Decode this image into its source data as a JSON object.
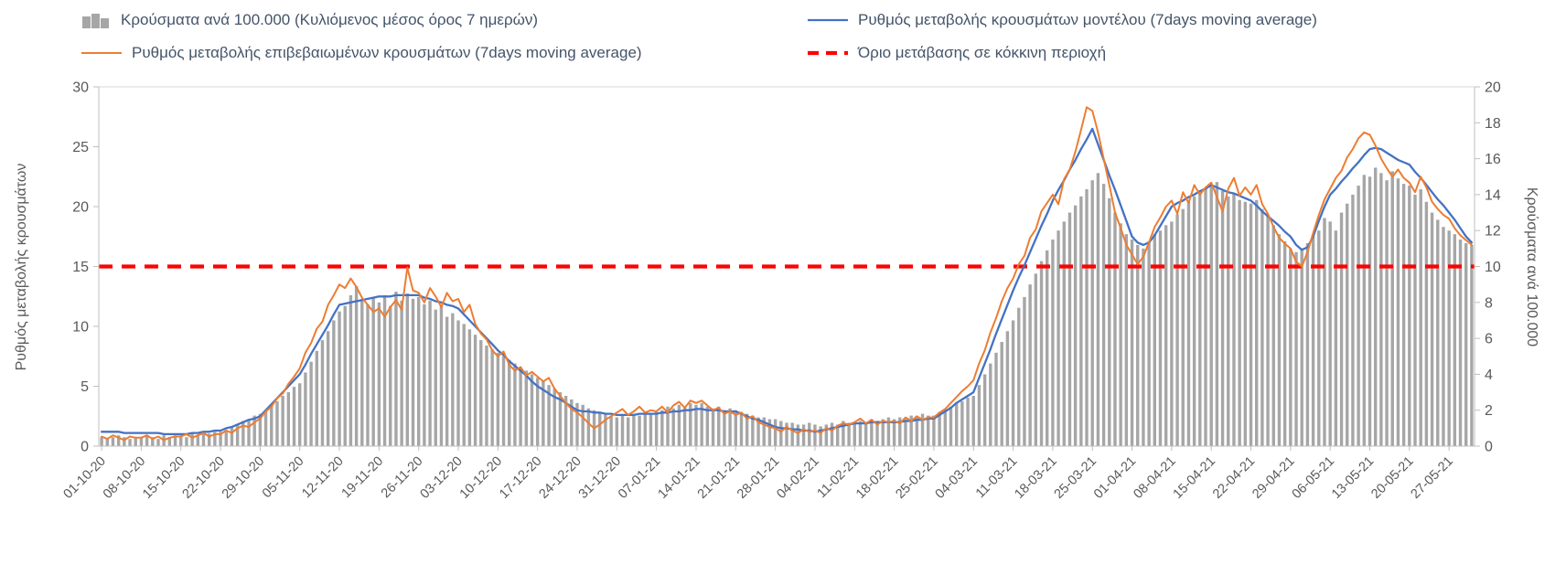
{
  "chart_data": {
    "type": "combo",
    "x_tick_labels": [
      "01-10-20",
      "08-10-20",
      "15-10-20",
      "22-10-20",
      "29-10-20",
      "05-11-20",
      "12-11-20",
      "19-11-20",
      "26-11-20",
      "03-12-20",
      "10-12-20",
      "17-12-20",
      "24-12-20",
      "31-12-20",
      "07-01-21",
      "14-01-21",
      "21-01-21",
      "28-01-21",
      "04-02-21",
      "11-02-21",
      "18-02-21",
      "25-02-21",
      "04-03-21",
      "11-03-21",
      "18-03-21",
      "25-03-21",
      "01-04-21",
      "08-04-21",
      "15-04-21",
      "22-04-21",
      "29-04-21",
      "06-05-21",
      "13-05-21",
      "20-05-21",
      "27-05-21"
    ],
    "days_per_tick": 7,
    "left_axis": {
      "title": "Ρυθμός μεταβολής κρουσμάτων",
      "min": 0,
      "max": 30,
      "ticks": [
        0,
        5,
        10,
        15,
        20,
        25,
        30
      ]
    },
    "right_axis": {
      "title": "Κρούσματα ανά 100.000",
      "min": 0,
      "max": 20,
      "ticks": [
        0,
        2,
        4,
        6,
        8,
        10,
        12,
        14,
        16,
        18,
        20
      ]
    },
    "threshold": {
      "label": "Όριο μετάβασης σε κόκκινη περιοχή",
      "axis": "left",
      "value": 15,
      "color": "#ff0000"
    },
    "bars": {
      "name": "Κρούσματα ανά 100.000 (Κυλιόμενος μέσος όρος 7 ημερών)",
      "axis": "right",
      "color": "#a6a6a6",
      "values": [
        0.5,
        0.4,
        0.5,
        0.6,
        0.5,
        0.4,
        0.5,
        0.5,
        0.6,
        0.5,
        0.4,
        0.6,
        0.5,
        0.6,
        0.6,
        0.5,
        0.7,
        0.6,
        0.8,
        0.7,
        0.8,
        0.8,
        0.9,
        1.1,
        1.2,
        1.4,
        1.5,
        1.7,
        1.8,
        2.0,
        2.3,
        2.5,
        2.8,
        3.0,
        3.3,
        3.5,
        4.1,
        4.7,
        5.3,
        5.9,
        6.4,
        7.0,
        7.5,
        7.8,
        8.4,
        8.9,
        8.2,
        7.9,
        8.3,
        8.0,
        8.4,
        7.8,
        8.6,
        8.1,
        8.5,
        8.2,
        8.3,
        7.9,
        8.1,
        7.6,
        7.8,
        7.2,
        7.4,
        7.0,
        6.8,
        6.5,
        6.2,
        5.9,
        5.6,
        5.4,
        5.2,
        5.0,
        4.8,
        4.6,
        4.4,
        4.2,
        4.0,
        3.8,
        3.6,
        3.4,
        3.2,
        3.0,
        2.8,
        2.6,
        2.4,
        2.3,
        2.1,
        2.0,
        1.9,
        1.8,
        1.7,
        1.6,
        1.7,
        1.6,
        1.8,
        1.7,
        1.9,
        1.8,
        1.9,
        2.0,
        2.2,
        2.1,
        2.3,
        2.2,
        2.4,
        2.3,
        2.4,
        2.2,
        2.1,
        2.2,
        2.0,
        2.1,
        2.0,
        1.9,
        1.8,
        1.7,
        1.6,
        1.6,
        1.5,
        1.5,
        1.4,
        1.3,
        1.3,
        1.2,
        1.2,
        1.3,
        1.2,
        1.1,
        1.2,
        1.3,
        1.2,
        1.4,
        1.3,
        1.3,
        1.4,
        1.3,
        1.5,
        1.4,
        1.5,
        1.6,
        1.5,
        1.6,
        1.5,
        1.7,
        1.6,
        1.8,
        1.7,
        1.7,
        1.9,
        2.0,
        2.2,
        2.4,
        2.5,
        2.7,
        2.8,
        3.4,
        4.0,
        4.6,
        5.2,
        5.8,
        6.4,
        7.0,
        7.7,
        8.3,
        9.0,
        9.6,
        10.3,
        10.9,
        11.5,
        12.0,
        12.5,
        13.0,
        13.4,
        13.9,
        14.3,
        14.8,
        15.2,
        14.6,
        13.8,
        13.0,
        12.4,
        11.8,
        11.5,
        11.2,
        11.0,
        11.4,
        11.8,
        12.0,
        12.3,
        12.5,
        12.9,
        13.2,
        13.6,
        13.9,
        14.2,
        14.4,
        14.5,
        14.7,
        14.2,
        13.9,
        14.1,
        13.7,
        13.6,
        13.5,
        13.7,
        13.2,
        12.8,
        12.3,
        11.8,
        11.4,
        11.0,
        10.8,
        11.0,
        11.3,
        11.7,
        12.0,
        12.7,
        12.5,
        12.0,
        13.0,
        13.5,
        14.0,
        14.5,
        15.1,
        15.0,
        15.5,
        15.2,
        14.8,
        15.3,
        14.9,
        14.6,
        14.5,
        14.0,
        14.3,
        13.6,
        13.0,
        12.6,
        12.2,
        12.0,
        11.8,
        11.5,
        11.3,
        11.2
      ]
    },
    "model_line": {
      "name": "Ρυθμός μεταβολής κρουσμάτων μοντέλου (7days moving average)",
      "axis": "left",
      "color": "#4472c4",
      "values": [
        1.2,
        1.2,
        1.2,
        1.2,
        1.1,
        1.1,
        1.1,
        1.1,
        1.1,
        1.1,
        1.1,
        1.0,
        1.0,
        1.0,
        1.0,
        1.0,
        1.1,
        1.1,
        1.2,
        1.2,
        1.3,
        1.3,
        1.5,
        1.6,
        1.8,
        2.0,
        2.2,
        2.3,
        2.5,
        3.0,
        3.5,
        4.0,
        4.5,
        5.0,
        5.5,
        6.0,
        6.8,
        7.7,
        8.5,
        9.3,
        10.1,
        11.0,
        11.8,
        11.9,
        12.0,
        12.1,
        12.2,
        12.3,
        12.4,
        12.5,
        12.5,
        12.5,
        12.6,
        12.6,
        12.6,
        12.6,
        12.6,
        12.4,
        12.3,
        12.1,
        12.0,
        11.8,
        11.7,
        11.5,
        11.0,
        10.5,
        10.0,
        9.5,
        9.0,
        8.5,
        8.0,
        7.6,
        7.1,
        6.7,
        6.3,
        5.9,
        5.4,
        5.0,
        4.7,
        4.4,
        4.1,
        3.9,
        3.6,
        3.3,
        3.0,
        2.9,
        2.9,
        2.8,
        2.8,
        2.7,
        2.7,
        2.6,
        2.6,
        2.6,
        2.6,
        2.7,
        2.7,
        2.7,
        2.7,
        2.8,
        2.8,
        2.9,
        2.9,
        3.0,
        3.0,
        3.1,
        3.1,
        3.0,
        3.0,
        3.0,
        2.9,
        2.9,
        2.9,
        2.7,
        2.5,
        2.3,
        2.2,
        2.0,
        1.8,
        1.6,
        1.5,
        1.5,
        1.4,
        1.4,
        1.3,
        1.3,
        1.2,
        1.3,
        1.4,
        1.5,
        1.6,
        1.7,
        1.8,
        1.9,
        1.9,
        1.9,
        2.0,
        2.0,
        2.0,
        2.0,
        2.0,
        2.0,
        2.1,
        2.1,
        2.2,
        2.2,
        2.3,
        2.3,
        2.6,
        2.9,
        3.2,
        3.6,
        3.9,
        4.2,
        4.5,
        5.7,
        6.9,
        8.1,
        9.4,
        10.6,
        11.8,
        13.0,
        14.1,
        15.1,
        16.2,
        17.3,
        18.4,
        19.4,
        20.5,
        21.4,
        22.2,
        23.1,
        23.9,
        24.8,
        25.6,
        26.5,
        25.2,
        23.9,
        22.6,
        21.4,
        20.1,
        18.8,
        17.5,
        17.0,
        16.8,
        17.0,
        17.6,
        18.4,
        19.2,
        20.0,
        20.3,
        20.5,
        20.8,
        21.0,
        21.3,
        21.5,
        21.8,
        21.6,
        21.4,
        21.2,
        21.1,
        20.9,
        20.7,
        20.5,
        20.1,
        19.6,
        19.2,
        18.8,
        18.4,
        17.9,
        17.5,
        16.8,
        16.4,
        16.6,
        17.5,
        18.8,
        20.0,
        21.0,
        21.5,
        22.1,
        22.6,
        23.2,
        23.7,
        24.3,
        24.8,
        24.9,
        24.8,
        24.5,
        24.2,
        23.9,
        23.7,
        23.5,
        22.9,
        22.4,
        21.8,
        21.2,
        20.6,
        20.1,
        19.5,
        18.9,
        18.2,
        17.5,
        17.0
      ]
    },
    "confirmed_line": {
      "name": "Ρυθμός μεταβολής επιβεβαιωμένων κρουσμάτων (7days moving average)",
      "axis": "left",
      "color": "#ed7d31",
      "values": [
        0.8,
        0.6,
        0.9,
        0.7,
        0.5,
        0.8,
        0.7,
        0.7,
        0.9,
        0.6,
        0.8,
        0.5,
        0.7,
        0.8,
        0.8,
        1.0,
        0.7,
        0.9,
        1.1,
        0.8,
        1.0,
        1.0,
        1.3,
        1.1,
        1.5,
        1.7,
        1.6,
        2.0,
        2.3,
        2.9,
        3.3,
        4.0,
        4.4,
        5.2,
        5.8,
        6.5,
        7.8,
        8.6,
        9.8,
        10.4,
        11.8,
        12.6,
        13.5,
        13.2,
        14.0,
        13.3,
        12.4,
        11.8,
        11.2,
        11.5,
        10.8,
        11.6,
        12.2,
        11.4,
        14.9,
        13.0,
        12.8,
        12.0,
        13.2,
        12.5,
        11.6,
        12.8,
        12.1,
        12.3,
        11.2,
        11.8,
        10.2,
        9.4,
        8.9,
        8.0,
        7.5,
        7.9,
        6.8,
        6.3,
        6.6,
        5.9,
        6.2,
        5.8,
        5.4,
        5.7,
        4.8,
        4.2,
        3.6,
        3.1,
        2.8,
        2.4,
        1.9,
        1.5,
        1.8,
        2.2,
        2.5,
        2.8,
        3.1,
        2.6,
        2.9,
        3.3,
        2.8,
        3.0,
        2.9,
        3.3,
        2.8,
        3.4,
        3.7,
        3.2,
        3.8,
        3.6,
        3.8,
        3.4,
        3.0,
        3.2,
        2.7,
        2.9,
        2.6,
        2.8,
        2.3,
        2.5,
        2.0,
        1.8,
        1.6,
        1.5,
        1.2,
        1.6,
        1.3,
        1.1,
        1.4,
        1.2,
        1.3,
        1.1,
        1.5,
        1.3,
        1.7,
        1.9,
        1.8,
        2.0,
        2.3,
        1.9,
        2.2,
        1.8,
        2.1,
        2.0,
        2.1,
        1.9,
        2.4,
        2.1,
        2.5,
        2.2,
        2.4,
        2.4,
        2.8,
        3.1,
        3.6,
        4.1,
        4.6,
        5.0,
        5.5,
        6.9,
        8.0,
        9.5,
        10.7,
        12.1,
        13.2,
        14.0,
        15.2,
        15.9,
        17.4,
        18.1,
        19.6,
        20.3,
        21.0,
        20.2,
        22.3,
        23.1,
        24.6,
        26.4,
        28.3,
        28.0,
        26.2,
        24.0,
        21.8,
        19.5,
        18.2,
        16.8,
        16.0,
        15.2,
        15.8,
        17.0,
        18.3,
        19.1,
        20.0,
        20.5,
        19.4,
        21.2,
        20.3,
        21.8,
        21.0,
        21.6,
        22.0,
        20.8,
        19.6,
        21.5,
        22.4,
        20.9,
        21.6,
        21.0,
        21.8,
        20.2,
        19.4,
        18.3,
        17.4,
        16.9,
        16.5,
        15.4,
        15.0,
        16.2,
        17.8,
        19.3,
        20.6,
        21.5,
        22.4,
        23.0,
        24.1,
        24.8,
        25.7,
        26.2,
        26.0,
        25.1,
        24.0,
        23.2,
        22.5,
        23.1,
        22.4,
        22.0,
        21.2,
        22.5,
        21.6,
        20.4,
        19.8,
        19.3,
        19.0,
        18.2,
        17.6,
        17.2,
        16.8
      ]
    }
  }
}
